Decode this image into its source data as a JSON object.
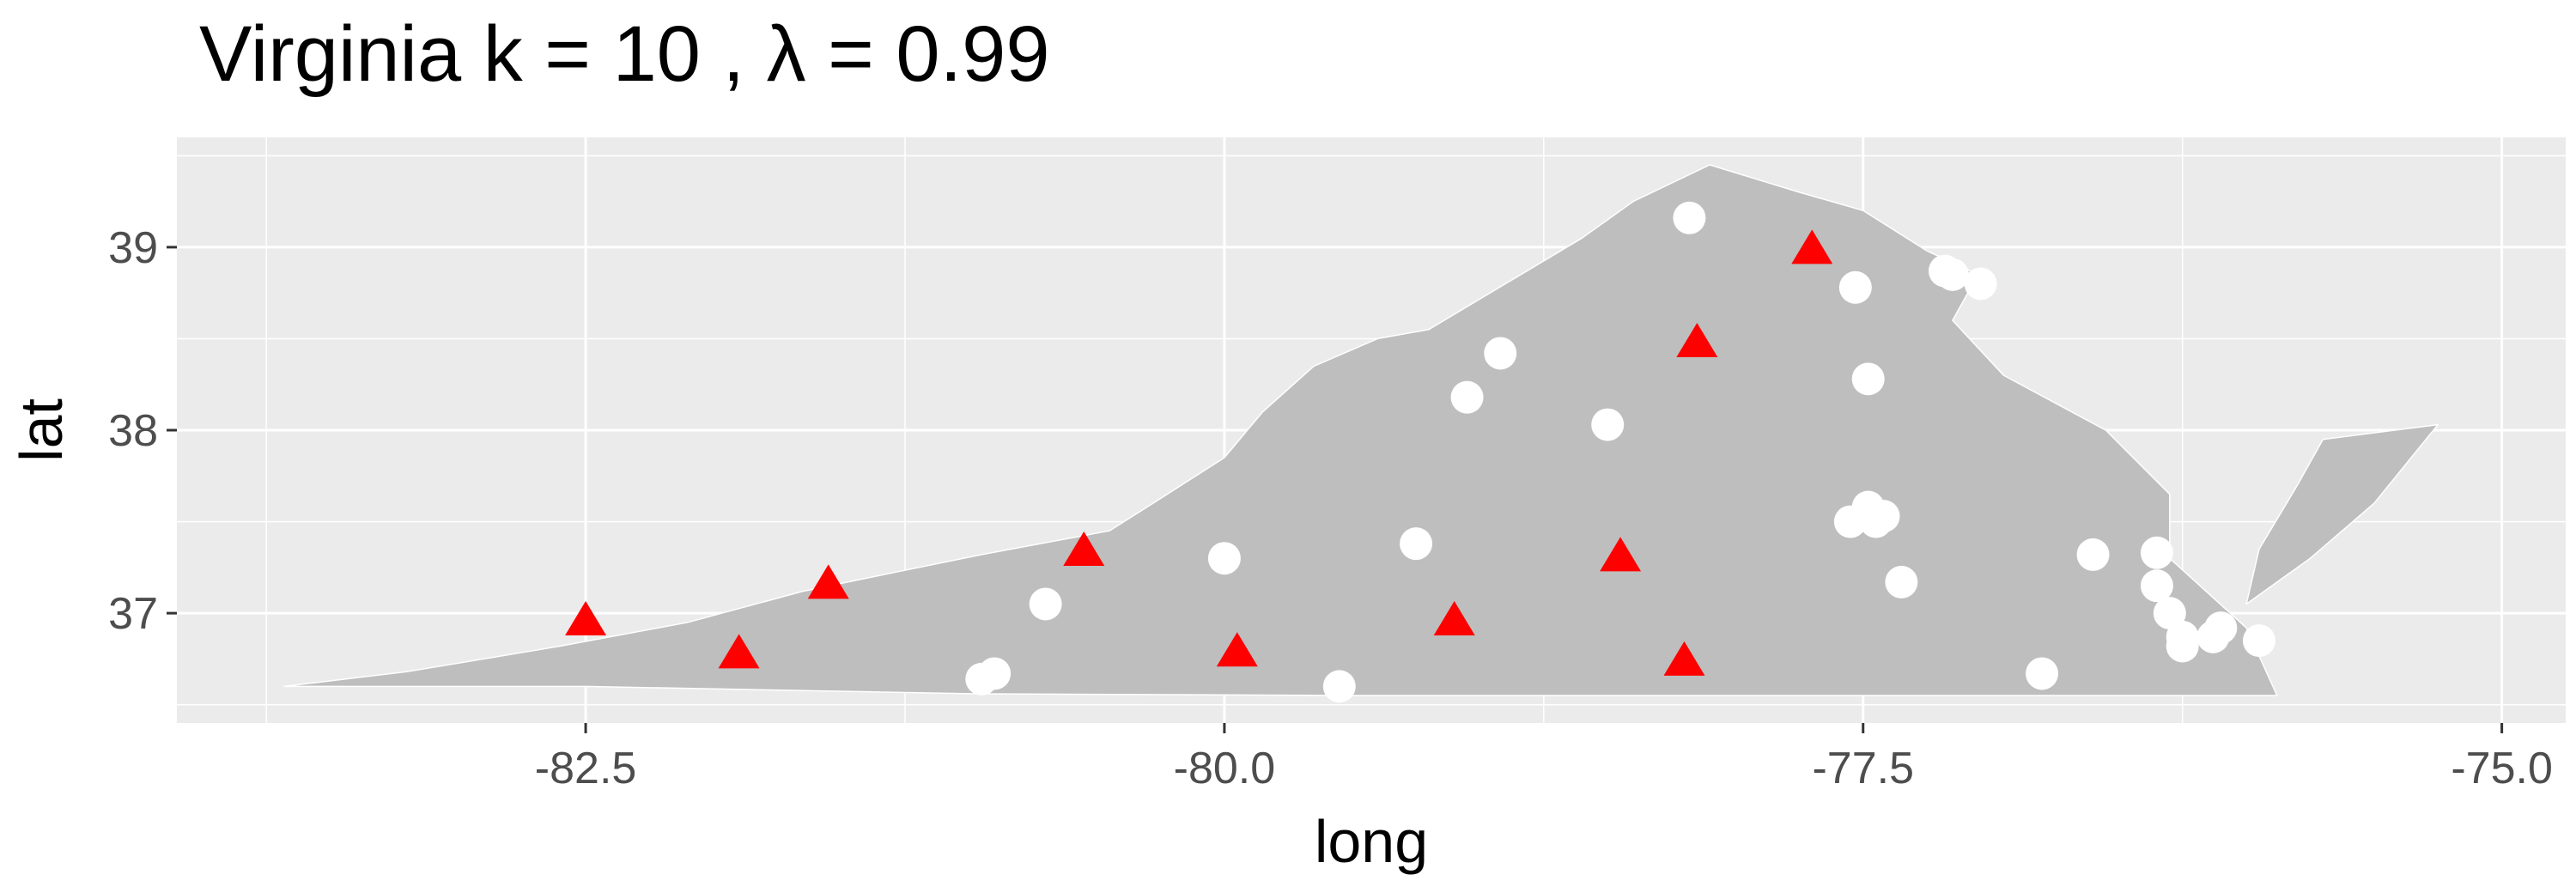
{
  "chart_data": {
    "type": "scatter",
    "title": "Virginia  k =  10 ,  λ  =  0.99",
    "xlabel": "long",
    "ylabel": "lat",
    "xlim": [
      -84.1,
      -74.75
    ],
    "ylim": [
      36.4,
      39.6
    ],
    "x_ticks": [
      -82.5,
      -80.0,
      -77.5,
      -75.0
    ],
    "x_tick_labels": [
      "-82.5",
      "-80.0",
      "-77.5",
      "-75.0"
    ],
    "y_ticks": [
      37,
      38,
      39
    ],
    "y_tick_labels": [
      "37",
      "38",
      "39"
    ],
    "grid": true,
    "panel_color": "#ebebeb",
    "grid_color": "#ffffff",
    "state_fill": "#bebebe",
    "state_outline": [
      [
        -83.68,
        36.6
      ],
      [
        -83.2,
        36.68
      ],
      [
        -82.6,
        36.82
      ],
      [
        -82.1,
        36.95
      ],
      [
        -81.65,
        37.12
      ],
      [
        -81.3,
        37.22
      ],
      [
        -80.95,
        37.32
      ],
      [
        -80.45,
        37.45
      ],
      [
        -80.28,
        37.6
      ],
      [
        -80.0,
        37.85
      ],
      [
        -79.85,
        38.1
      ],
      [
        -79.65,
        38.35
      ],
      [
        -79.4,
        38.5
      ],
      [
        -79.2,
        38.55
      ],
      [
        -78.9,
        38.8
      ],
      [
        -78.6,
        39.05
      ],
      [
        -78.4,
        39.25
      ],
      [
        -78.1,
        39.45
      ],
      [
        -77.75,
        39.3
      ],
      [
        -77.5,
        39.2
      ],
      [
        -77.25,
        38.98
      ],
      [
        -77.05,
        38.85
      ],
      [
        -77.15,
        38.6
      ],
      [
        -76.95,
        38.3
      ],
      [
        -76.55,
        38.0
      ],
      [
        -76.3,
        37.65
      ],
      [
        -76.3,
        37.3
      ],
      [
        -76.0,
        36.92
      ],
      [
        -75.88,
        36.55
      ],
      [
        -77.5,
        36.55
      ],
      [
        -79.5,
        36.55
      ],
      [
        -81.0,
        36.56
      ],
      [
        -82.5,
        36.6
      ]
    ],
    "shore_outline": [
      [
        -75.7,
        37.95
      ],
      [
        -75.25,
        38.03
      ],
      [
        -75.5,
        37.6
      ],
      [
        -75.75,
        37.3
      ],
      [
        -76.0,
        37.05
      ],
      [
        -75.95,
        37.35
      ],
      [
        -75.8,
        37.7
      ]
    ],
    "series": [
      {
        "name": "",
        "marker": "triangle",
        "color": "#ff0000",
        "points": [
          [
            -82.5,
            36.95
          ],
          [
            -81.9,
            36.77
          ],
          [
            -81.55,
            37.15
          ],
          [
            -80.55,
            37.33
          ],
          [
            -79.95,
            36.78
          ],
          [
            -79.1,
            36.95
          ],
          [
            -78.45,
            37.3
          ],
          [
            -78.2,
            36.73
          ],
          [
            -78.15,
            38.47
          ],
          [
            -77.7,
            38.98
          ]
        ]
      },
      {
        "name": "",
        "marker": "circle",
        "color": "#ffffff",
        "points": [
          [
            -80.95,
            36.64
          ],
          [
            -80.9,
            36.67
          ],
          [
            -80.7,
            37.05
          ],
          [
            -80.0,
            37.3
          ],
          [
            -79.55,
            36.6
          ],
          [
            -79.25,
            37.38
          ],
          [
            -79.05,
            38.18
          ],
          [
            -78.92,
            38.42
          ],
          [
            -78.5,
            38.03
          ],
          [
            -78.18,
            39.16
          ],
          [
            -77.53,
            38.78
          ],
          [
            -77.18,
            38.87
          ],
          [
            -77.15,
            38.85
          ],
          [
            -77.04,
            38.8
          ],
          [
            -77.48,
            38.28
          ],
          [
            -77.55,
            37.5
          ],
          [
            -77.48,
            37.58
          ],
          [
            -77.42,
            37.53
          ],
          [
            -77.45,
            37.5
          ],
          [
            -77.35,
            37.17
          ],
          [
            -76.8,
            36.67
          ],
          [
            -76.6,
            37.32
          ],
          [
            -76.35,
            37.33
          ],
          [
            -76.35,
            37.15
          ],
          [
            -76.3,
            37.0
          ],
          [
            -76.25,
            36.87
          ],
          [
            -76.25,
            36.82
          ],
          [
            -76.13,
            36.87
          ],
          [
            -76.1,
            36.92
          ],
          [
            -75.95,
            36.85
          ]
        ]
      }
    ]
  }
}
